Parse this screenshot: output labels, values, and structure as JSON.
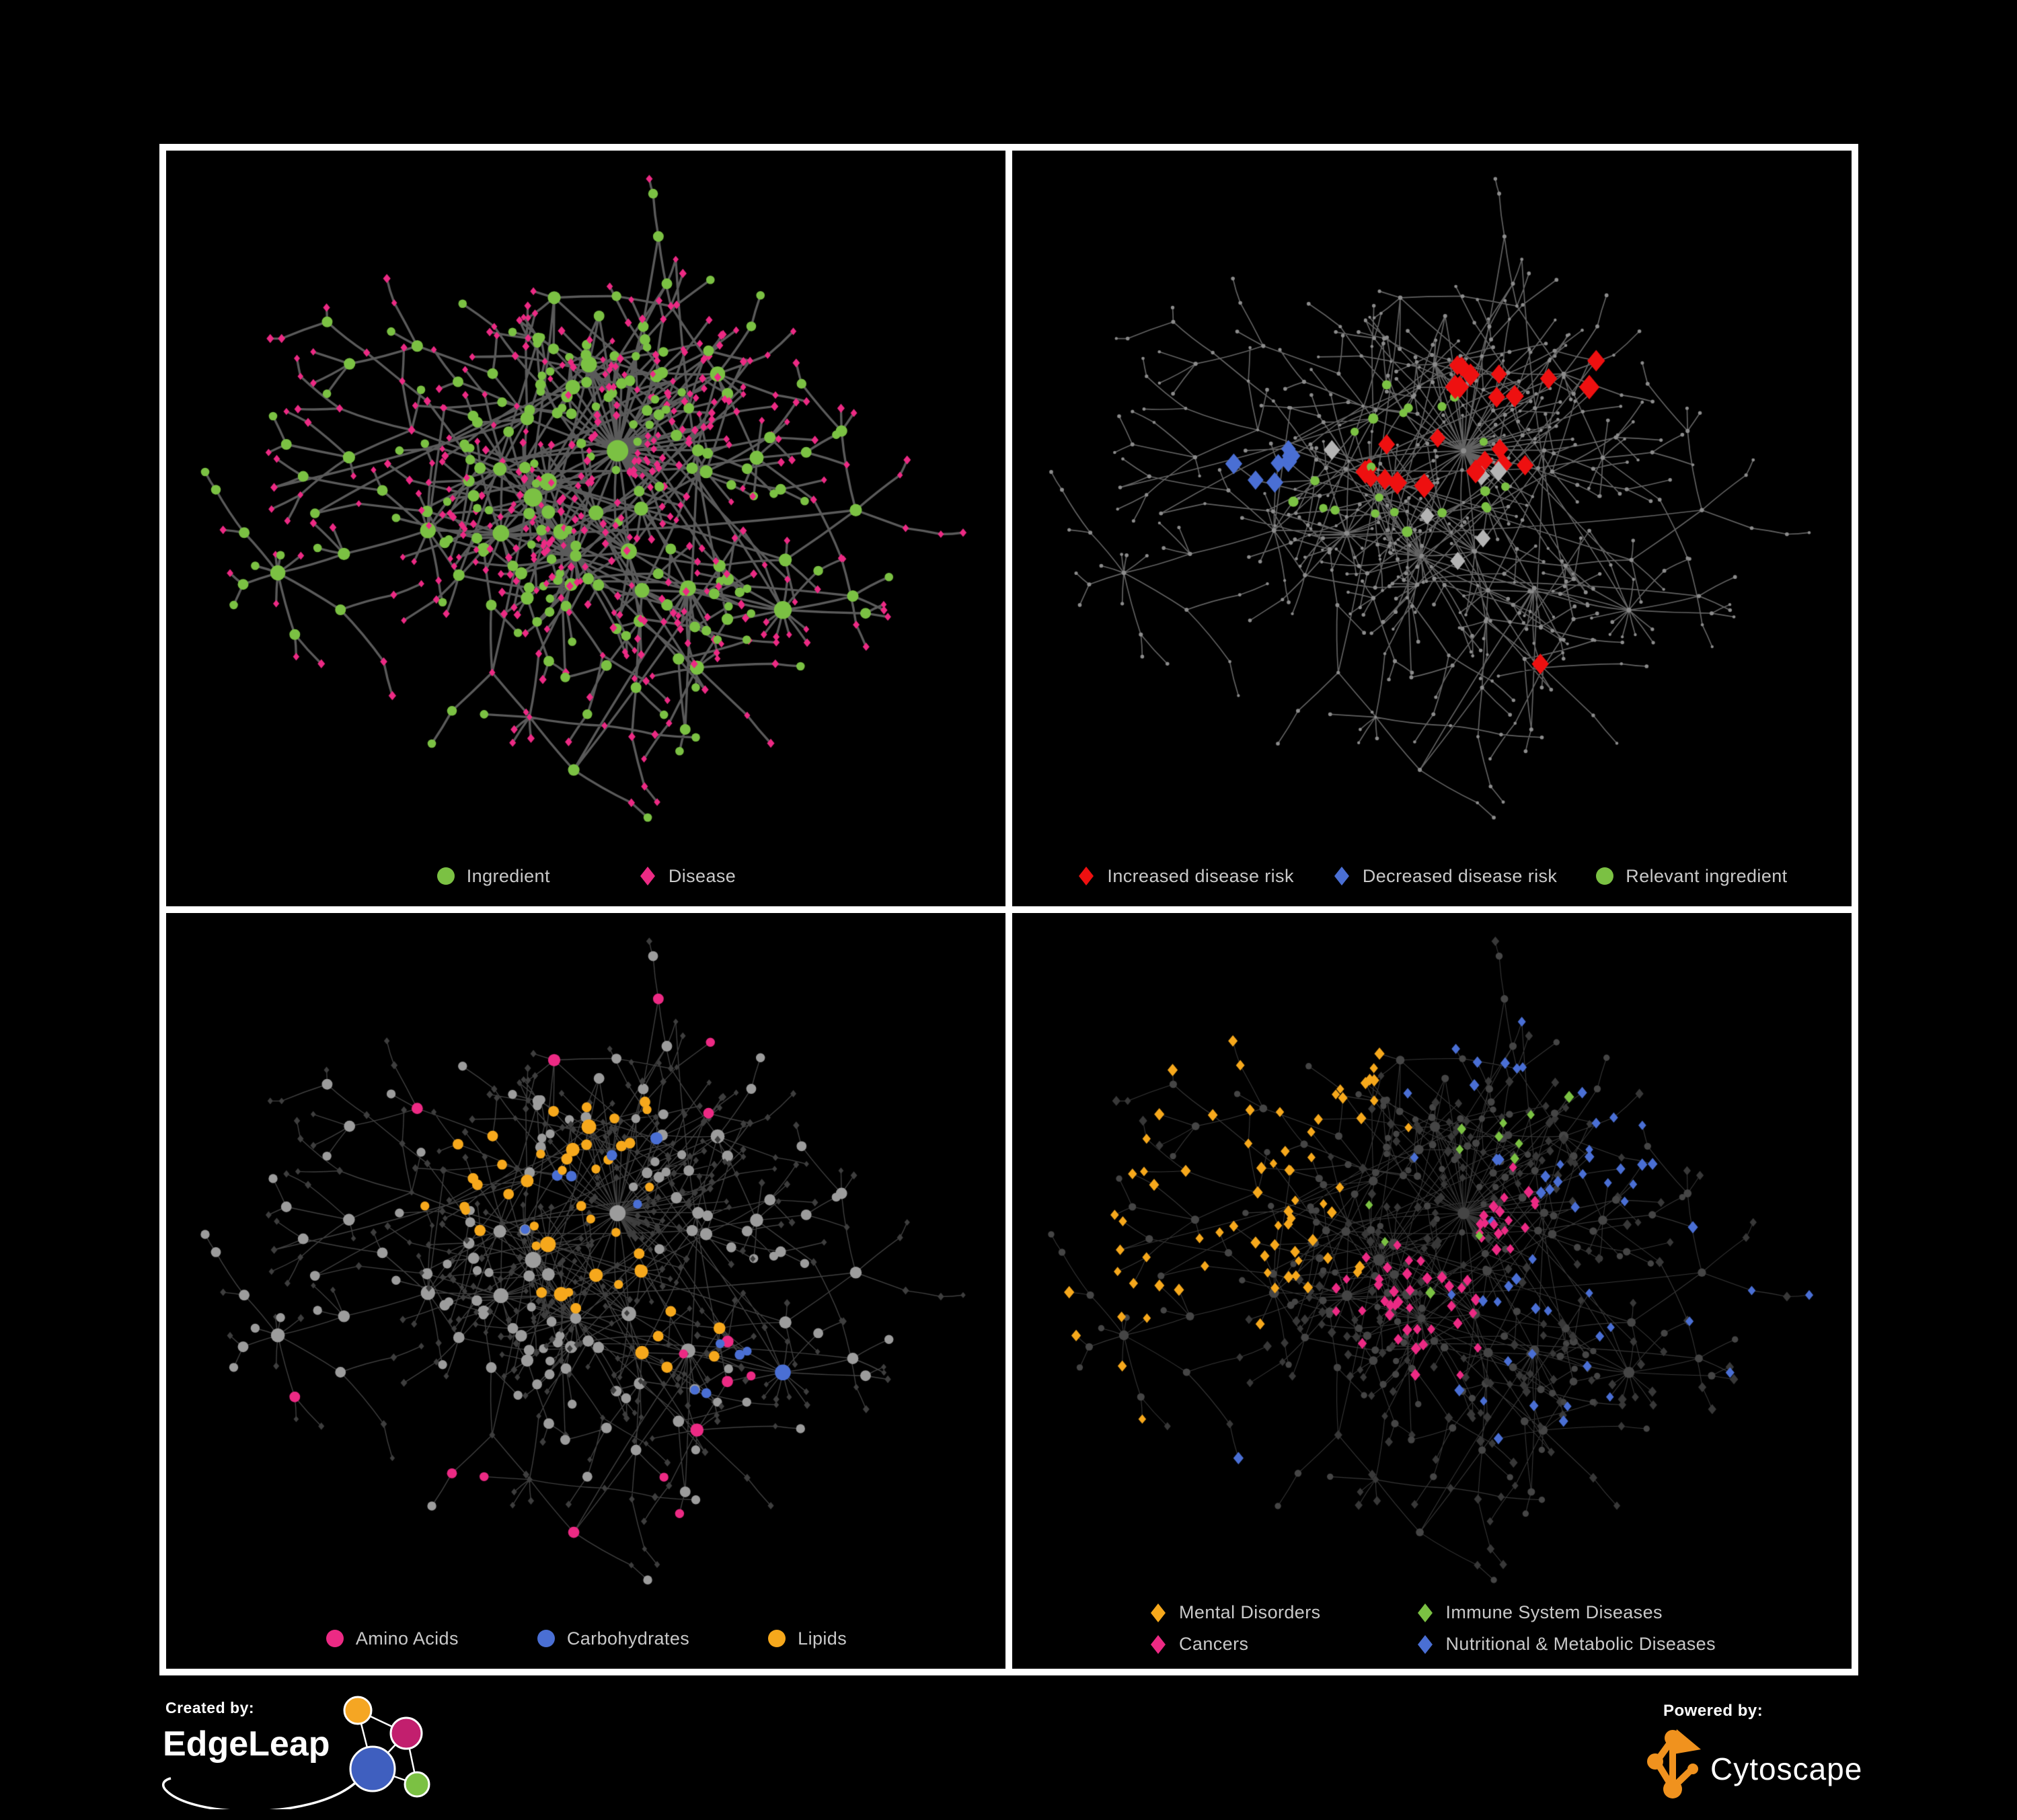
{
  "figure": {
    "background": "#000000",
    "panel_border_color": "#ffffff"
  },
  "panels": [
    {
      "id": "ingredient-disease",
      "legend": [
        {
          "label": "Ingredient",
          "shape": "circle",
          "color": "#7bc143"
        },
        {
          "label": "Disease",
          "shape": "diamond",
          "color": "#ec2a84"
        }
      ]
    },
    {
      "id": "disease-risk",
      "legend": [
        {
          "label": "Increased disease risk",
          "shape": "diamond",
          "color": "#ee1010"
        },
        {
          "label": "Decreased disease risk",
          "shape": "diamond",
          "color": "#4a6fd4"
        },
        {
          "label": "Relevant ingredient",
          "shape": "circle",
          "color": "#7bc143"
        }
      ]
    },
    {
      "id": "nutrient-classes",
      "legend": [
        {
          "label": "Amino Acids",
          "shape": "circle",
          "color": "#ec2a84"
        },
        {
          "label": "Carbohydrates",
          "shape": "circle",
          "color": "#4a6fd4"
        },
        {
          "label": "Lipids",
          "shape": "circle",
          "color": "#f6a81c"
        }
      ]
    },
    {
      "id": "disease-classes",
      "legend": [
        {
          "label": "Mental Disorders",
          "shape": "diamond",
          "color": "#f6a81c"
        },
        {
          "label": "Immune System Diseases",
          "shape": "diamond",
          "color": "#7bc143"
        },
        {
          "label": "Cancers",
          "shape": "diamond",
          "color": "#ec2a84"
        },
        {
          "label": "Nutritional & Metabolic Diseases",
          "shape": "diamond",
          "color": "#4a6fd4"
        }
      ]
    }
  ],
  "footer": {
    "created_by_label": "Created by:",
    "edgeleap_name": "EdgeLeap",
    "powered_by_label": "Powered by:",
    "cytoscape_name": "Cytoscape",
    "edgeleap_logo_colors": {
      "orange": "#f5a623",
      "magenta": "#c21f6e",
      "blue": "#3f5fbf",
      "green": "#7bc143"
    },
    "cytoscape_logo_color": "#f0921e"
  },
  "network": {
    "seed": 1337,
    "node_count": 640,
    "preferential_prob": 0.6,
    "extra_edges": 42,
    "leaf_len": 30,
    "branch_len": 52,
    "styles": [
      {
        "edge": {
          "color": "#646464",
          "alpha": 0.9,
          "width": 3.4
        },
        "ingredient": {
          "shape": "circle",
          "color": "#7bc143",
          "min_r": 4,
          "deg_r": 2.3,
          "max_r": 16
        },
        "disease": {
          "shape": "diamond",
          "color": "#ec2a84",
          "r": 5.2
        },
        "groups": []
      },
      {
        "edge": {
          "color": "#7a7a7a",
          "alpha": 0.8,
          "width": 1.7
        },
        "ingredient": {
          "shape": "circle",
          "color": "#8c8c8c",
          "min_r": 2.6,
          "deg_r": 0.25,
          "max_r": 4
        },
        "disease": {
          "shape": "circle",
          "color": "#8c8c8c",
          "r": 2.5
        },
        "groups": [
          {
            "name": "increased-risk",
            "color": "#ee1010",
            "shape": "diamond",
            "target": "disease",
            "size": 14,
            "count": 26,
            "spread": 0.16,
            "anchors": [
              [
                0.5,
                0.36
              ],
              [
                0.6,
                0.44
              ],
              [
                0.44,
                0.47
              ],
              [
                0.72,
                0.3
              ],
              [
                0.65,
                0.75
              ],
              [
                0.55,
                0.3
              ]
            ]
          },
          {
            "name": "decreased-risk",
            "color": "#4a6fd4",
            "shape": "diamond",
            "target": "disease",
            "size": 13,
            "count": 7,
            "spread": 0.06,
            "anchors": [
              [
                0.3,
                0.44
              ],
              [
                0.92,
                0.33
              ]
            ]
          },
          {
            "name": "unchanged-risk",
            "color": "#b4b4b4",
            "shape": "diamond",
            "target": "disease",
            "size": 13,
            "count": 6,
            "spread": 0.1,
            "anchors": [
              [
                0.33,
                0.4
              ],
              [
                0.57,
                0.44
              ],
              [
                0.52,
                0.56
              ]
            ]
          },
          {
            "name": "relevant-ingredient",
            "color": "#7bc143",
            "shape": "circle",
            "target": "ingredient",
            "size": 7,
            "count": 22,
            "spread": 0.14,
            "anchors": [
              [
                0.47,
                0.4
              ],
              [
                0.55,
                0.5
              ],
              [
                0.4,
                0.5
              ],
              [
                0.25,
                0.33
              ]
            ]
          }
        ]
      },
      {
        "edge": {
          "color": "#a0a0a0",
          "alpha": 0.4,
          "width": 1.4
        },
        "ingredient": {
          "shape": "circle",
          "color": "#9c9c9c",
          "min_r": 5,
          "deg_r": 1.7,
          "max_r": 12
        },
        "disease": {
          "shape": "diamond",
          "color": "#3e3e3e",
          "r": 4.6
        },
        "groups": [
          {
            "name": "lipids",
            "color": "#f6a81c",
            "shape": "circle",
            "target": "ingredient",
            "size": 0,
            "count": 48,
            "spread": 0.12,
            "anchors": [
              [
                0.5,
                0.3
              ],
              [
                0.45,
                0.42
              ],
              [
                0.55,
                0.5
              ],
              [
                0.63,
                0.58
              ],
              [
                0.38,
                0.35
              ]
            ]
          },
          {
            "name": "carbohydrates",
            "color": "#4a6fd4",
            "shape": "circle",
            "target": "ingredient",
            "size": 0,
            "count": 12,
            "spread": 0.18,
            "anchors": [
              [
                0.48,
                0.36
              ],
              [
                0.04,
                0.2
              ],
              [
                0.73,
                0.62
              ]
            ]
          },
          {
            "name": "amino-acids",
            "color": "#ec2a84",
            "shape": "circle",
            "target": "ingredient",
            "size": 0,
            "count": 16,
            "spread": 0.5,
            "anchors": [
              [
                0.14,
                0.24
              ],
              [
                0.6,
                0.2
              ],
              [
                0.68,
                0.6
              ],
              [
                0.34,
                0.76
              ],
              [
                0.15,
                0.6
              ],
              [
                0.9,
                0.05
              ],
              [
                0.62,
                0.92
              ]
            ]
          }
        ]
      },
      {
        "edge": {
          "color": "#aaaaaa",
          "alpha": 0.32,
          "width": 1.1
        },
        "ingredient": {
          "shape": "circle",
          "color": "#454545",
          "min_r": 3.5,
          "deg_r": 1.2,
          "max_r": 9
        },
        "disease": {
          "shape": "diamond",
          "color": "#383838",
          "r": 6
        },
        "groups": [
          {
            "name": "mental-disorders",
            "color": "#f6a81c",
            "shape": "diamond",
            "target": "disease",
            "size": 7,
            "count": 75,
            "spread": 0.1,
            "anchors": [
              [
                0.16,
                0.5
              ],
              [
                0.22,
                0.44
              ],
              [
                0.13,
                0.58
              ],
              [
                0.3,
                0.2
              ]
            ]
          },
          {
            "name": "cancers",
            "color": "#ec2a84",
            "shape": "diamond",
            "target": "disease",
            "size": 7,
            "count": 58,
            "spread": 0.12,
            "anchors": [
              [
                0.45,
                0.54
              ],
              [
                0.53,
                0.6
              ],
              [
                0.6,
                0.44
              ],
              [
                0.97,
                0.24
              ]
            ]
          },
          {
            "name": "nutritional-metabolic",
            "color": "#4a6fd4",
            "shape": "diamond",
            "target": "disease",
            "size": 7,
            "count": 58,
            "spread": 0.28,
            "anchors": [
              [
                0.63,
                0.62
              ],
              [
                0.74,
                0.38
              ],
              [
                0.85,
                0.28
              ],
              [
                0.55,
                0.12
              ],
              [
                0.35,
                0.22
              ],
              [
                0.3,
                0.88
              ],
              [
                0.9,
                0.55
              ]
            ]
          },
          {
            "name": "immune-system",
            "color": "#7bc143",
            "shape": "diamond",
            "target": "disease",
            "size": 7,
            "count": 12,
            "spread": 0.5,
            "anchors": [
              [
                0.45,
                0.4
              ],
              [
                0.55,
                0.52
              ],
              [
                0.4,
                0.8
              ],
              [
                0.6,
                0.3
              ]
            ]
          }
        ]
      }
    ]
  }
}
